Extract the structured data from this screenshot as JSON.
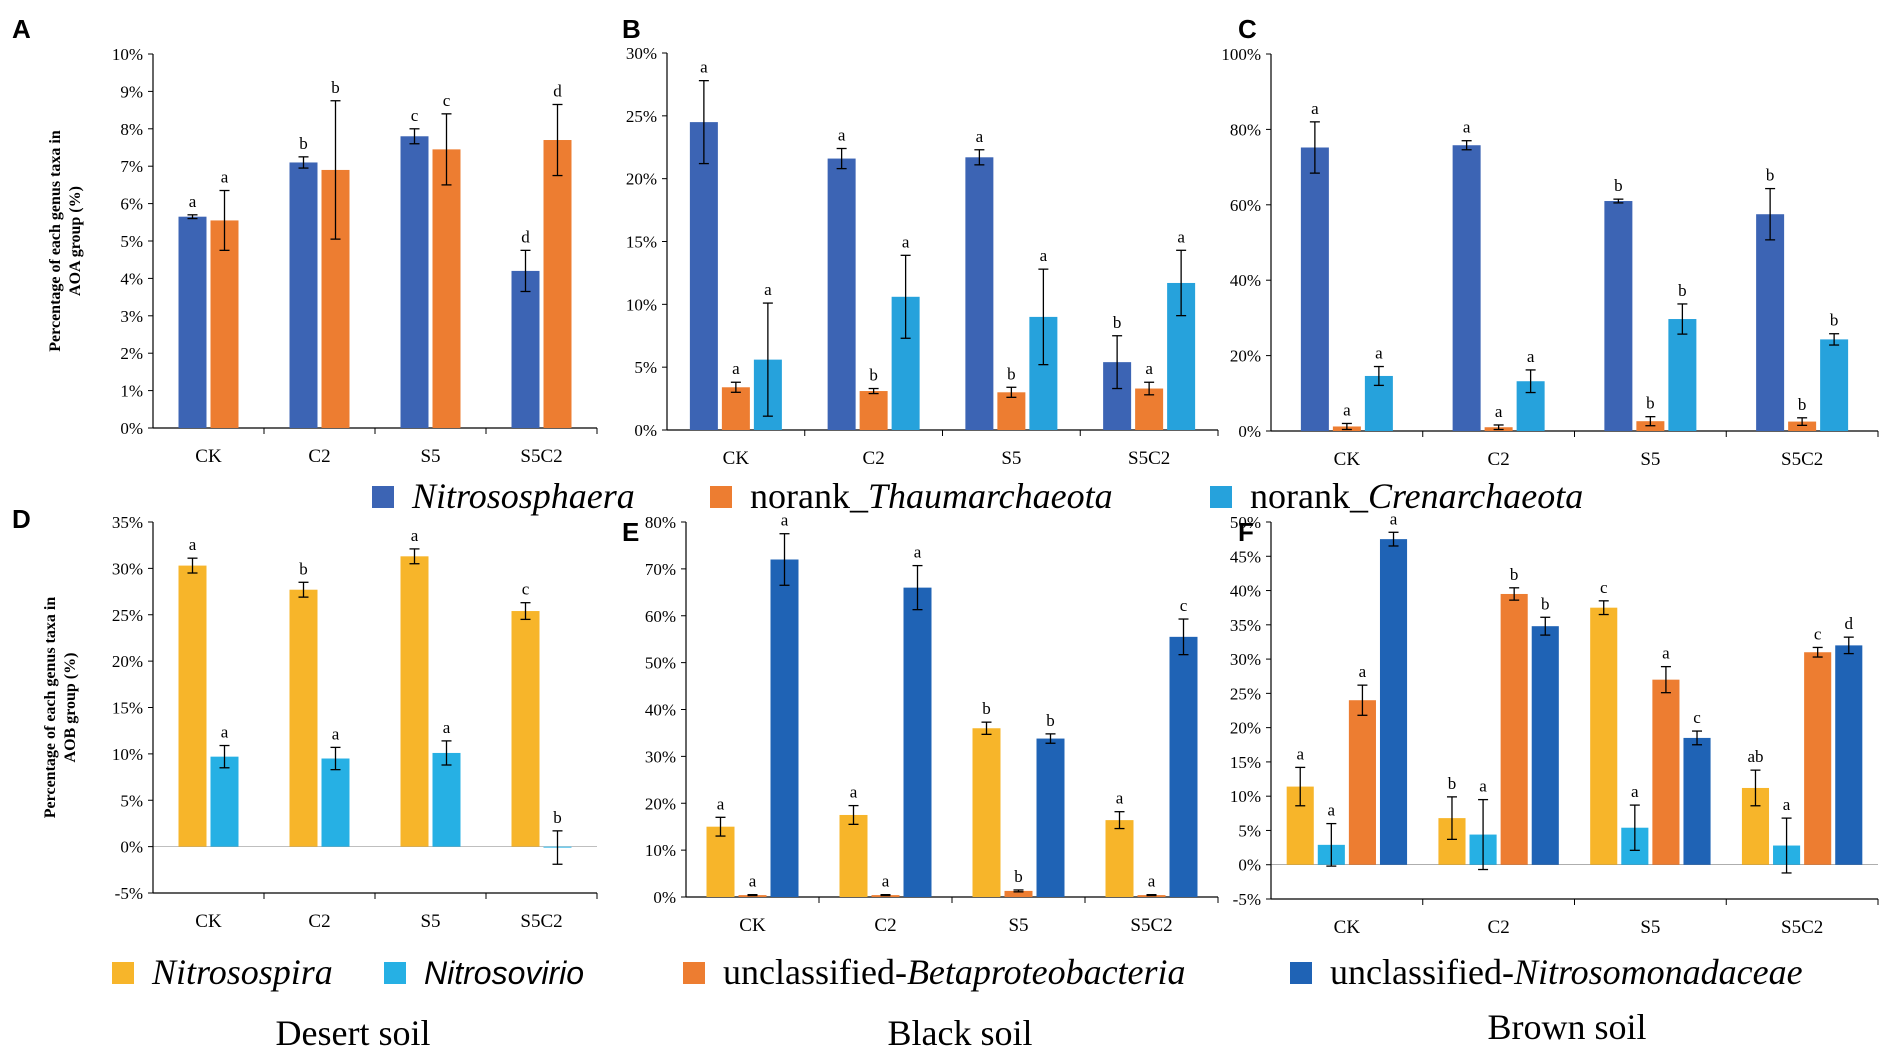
{
  "colors": {
    "nitrososphaera": "#3c64b4",
    "norank_thaum": "#ed7d31",
    "norank_cren": "#26a2dc",
    "nitrosospira": "#f7b52a",
    "nitrosovirio": "#26b0e4",
    "unclassified_beta": "#ed7d31",
    "unclassified_nitrosomonadaceae": "#1f63b5"
  },
  "soils": [
    "Desert soil",
    "Black soil",
    "Brown soil"
  ],
  "top_legend": [
    {
      "key": "nitrososphaera",
      "parts": [
        {
          "t": "Nitrososphaera",
          "it": true
        }
      ]
    },
    {
      "key": "norank_thaum",
      "parts": [
        {
          "t": "norank_",
          "it": false
        },
        {
          "t": "Thaumarchaeota",
          "it": true
        }
      ]
    },
    {
      "key": "norank_cren",
      "parts": [
        {
          "t": "norank_",
          "it": false
        },
        {
          "t": "Crenarchaeota",
          "it": true
        }
      ]
    }
  ],
  "bottom_legend": [
    {
      "key": "nitrosospira",
      "parts": [
        {
          "t": "Nitrosospira",
          "it": true
        }
      ]
    },
    {
      "key": "nitrosovirio",
      "parts": [
        {
          "t": "Nitrosovirio",
          "it": true,
          "sans": true
        }
      ]
    },
    {
      "key": "unclassified_beta",
      "parts": [
        {
          "t": "unclassified-",
          "it": false
        },
        {
          "t": "Betaproteobacteria",
          "it": true
        }
      ]
    },
    {
      "key": "unclassified_nitrosomonadaceae",
      "parts": [
        {
          "t": "unclassified-",
          "it": false
        },
        {
          "t": "Nitrosomonadaceae",
          "it": true
        }
      ]
    }
  ],
  "chart_data": [
    {
      "panel": "A",
      "type": "bar",
      "soil": "Desert soil",
      "ylabel": [
        "Percentage of each genus taxa in",
        "AOA group (%)"
      ],
      "categories": [
        "CK",
        "C2",
        "S5",
        "S5C2"
      ],
      "ylim": [
        0,
        10
      ],
      "ystep": 1,
      "tick_suffix": "%",
      "series": [
        {
          "name": "Nitrososphaera",
          "key": "nitrososphaera",
          "values": [
            5.65,
            7.1,
            7.8,
            4.2
          ],
          "errors": [
            0.05,
            0.15,
            0.2,
            0.55
          ],
          "labels": [
            "a",
            "b",
            "c",
            "d"
          ]
        },
        {
          "name": "norank_Thaumarchaeota",
          "key": "norank_thaum",
          "values": [
            5.55,
            6.9,
            7.45,
            7.7
          ],
          "errors": [
            0.8,
            1.85,
            0.95,
            0.95
          ],
          "labels": [
            "a",
            "b",
            "c",
            "d"
          ]
        }
      ]
    },
    {
      "panel": "B",
      "type": "bar",
      "soil": "Black soil",
      "ylabel": [],
      "categories": [
        "CK",
        "C2",
        "S5",
        "S5C2"
      ],
      "ylim": [
        0,
        30
      ],
      "ystep": 5,
      "tick_suffix": "%",
      "series": [
        {
          "name": "Nitrososphaera",
          "key": "nitrososphaera",
          "values": [
            24.5,
            21.6,
            21.7,
            5.4
          ],
          "errors": [
            3.3,
            0.8,
            0.6,
            2.1
          ],
          "labels": [
            "a",
            "a",
            "a",
            "b"
          ]
        },
        {
          "name": "norank_Thaumarchaeota",
          "key": "norank_thaum",
          "values": [
            3.4,
            3.1,
            3.0,
            3.3
          ],
          "errors": [
            0.4,
            0.2,
            0.4,
            0.5
          ],
          "labels": [
            "a",
            "b",
            "b",
            "a"
          ]
        },
        {
          "name": "norank_Crenarchaeota",
          "key": "norank_cren",
          "values": [
            5.6,
            10.6,
            9.0,
            11.7
          ],
          "errors": [
            4.5,
            3.3,
            3.8,
            2.6
          ],
          "labels": [
            "a",
            "a",
            "a",
            "a"
          ]
        }
      ]
    },
    {
      "panel": "C",
      "type": "bar",
      "soil": "Brown soil",
      "ylabel": [],
      "categories": [
        "CK",
        "C2",
        "S5",
        "S5C2"
      ],
      "ylim": [
        0,
        100
      ],
      "ystep": 20,
      "tick_suffix": "%",
      "series": [
        {
          "name": "Nitrososphaera",
          "key": "nitrososphaera",
          "values": [
            75.2,
            75.8,
            61.0,
            57.5
          ],
          "errors": [
            6.8,
            1.2,
            0.5,
            6.8
          ],
          "labels": [
            "a",
            "a",
            "b",
            "b"
          ]
        },
        {
          "name": "norank_Thaumarchaeota",
          "key": "norank_thaum",
          "values": [
            1.2,
            1.0,
            2.6,
            2.5
          ],
          "errors": [
            0.8,
            0.6,
            1.2,
            1.0
          ],
          "labels": [
            "a",
            "a",
            "b",
            "b"
          ]
        },
        {
          "name": "norank_Crenarchaeota",
          "key": "norank_cren",
          "values": [
            14.6,
            13.2,
            29.7,
            24.3
          ],
          "errors": [
            2.5,
            3.0,
            4.0,
            1.5
          ],
          "labels": [
            "a",
            "a",
            "b",
            "b"
          ]
        }
      ]
    },
    {
      "panel": "D",
      "type": "bar",
      "soil": "Desert soil",
      "ylabel": [
        "Percentage of each genus taxa in",
        "AOB group (%)"
      ],
      "categories": [
        "CK",
        "C2",
        "S5",
        "S5C2"
      ],
      "ylim": [
        -5,
        35
      ],
      "ystep": 5,
      "tick_suffix": "%",
      "series": [
        {
          "name": "Nitrosospira",
          "key": "nitrosospira",
          "values": [
            30.3,
            27.7,
            31.3,
            25.4
          ],
          "errors": [
            0.8,
            0.8,
            0.8,
            0.9
          ],
          "labels": [
            "a",
            "b",
            "a",
            "c"
          ]
        },
        {
          "name": "Nitrosovirio",
          "key": "nitrosovirio",
          "values": [
            9.7,
            9.5,
            10.1,
            -0.1
          ],
          "errors": [
            1.2,
            1.2,
            1.3,
            1.8
          ],
          "labels": [
            "a",
            "a",
            "a",
            "b"
          ]
        }
      ]
    },
    {
      "panel": "E",
      "type": "bar",
      "soil": "Black soil",
      "ylabel": [],
      "categories": [
        "CK",
        "C2",
        "S5",
        "S5C2"
      ],
      "ylim": [
        0,
        80
      ],
      "ystep": 10,
      "tick_suffix": "%",
      "series": [
        {
          "name": "Nitrosospira",
          "key": "nitrosospira",
          "values": [
            15.0,
            17.5,
            36.0,
            16.4
          ],
          "errors": [
            2.0,
            2.0,
            1.3,
            1.8
          ],
          "labels": [
            "a",
            "a",
            "b",
            "a"
          ]
        },
        {
          "name": "unclassified-Betaproteobacteria",
          "key": "unclassified_beta",
          "values": [
            0.4,
            0.4,
            1.3,
            0.4
          ],
          "errors": [
            0.1,
            0.1,
            0.2,
            0.1
          ],
          "labels": [
            "a",
            "a",
            "b",
            "a"
          ]
        },
        {
          "name": "unclassified-Nitrosomonadaceae",
          "key": "unclassified_nitrosomonadaceae",
          "values": [
            72.0,
            66.0,
            33.8,
            55.5
          ],
          "errors": [
            5.5,
            4.7,
            1.0,
            3.8
          ],
          "labels": [
            "a",
            "a",
            "b",
            "c"
          ]
        }
      ]
    },
    {
      "panel": "F",
      "type": "bar",
      "soil": "Brown soil",
      "ylabel": [],
      "categories": [
        "CK",
        "C2",
        "S5",
        "S5C2"
      ],
      "ylim": [
        -5,
        50
      ],
      "ystep": 5,
      "tick_suffix": "%",
      "series": [
        {
          "name": "Nitrosospira",
          "key": "nitrosospira",
          "values": [
            11.4,
            6.8,
            37.5,
            11.2
          ],
          "errors": [
            2.8,
            3.1,
            1.0,
            2.6
          ],
          "labels": [
            "a",
            "b",
            "c",
            "ab"
          ]
        },
        {
          "name": "Nitrosovirio",
          "key": "nitrosovirio",
          "values": [
            2.9,
            4.4,
            5.4,
            2.8
          ],
          "errors": [
            3.1,
            5.1,
            3.3,
            4.0
          ],
          "labels": [
            "a",
            "a",
            "a",
            "a"
          ]
        },
        {
          "name": "unclassified-Betaproteobacteria",
          "key": "unclassified_beta",
          "values": [
            24.0,
            39.5,
            27.0,
            31.0
          ],
          "errors": [
            2.2,
            0.9,
            1.9,
            0.7
          ],
          "labels": [
            "a",
            "b",
            "a",
            "c"
          ]
        },
        {
          "name": "unclassified-Nitrosomonadaceae",
          "key": "unclassified_nitrosomonadaceae",
          "values": [
            47.5,
            34.8,
            18.5,
            32.0
          ],
          "errors": [
            1.0,
            1.3,
            1.0,
            1.2
          ],
          "labels": [
            "a",
            "b",
            "c",
            "d"
          ]
        }
      ]
    }
  ]
}
